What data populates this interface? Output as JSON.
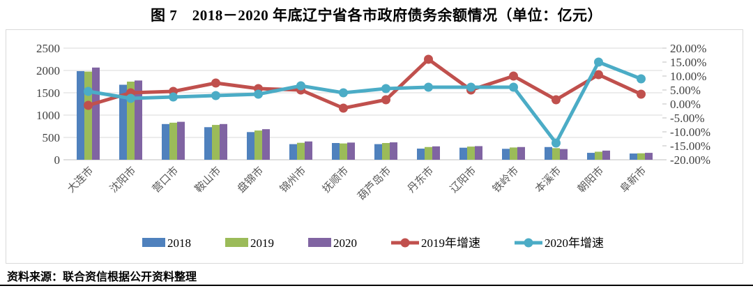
{
  "title": "图 7　2018－2020 年底辽宁省各市政府债务余额情况（单位：亿元）",
  "source_note": "资料来源：联合资信根据公开资料整理",
  "colors": {
    "bar_2018": "#4F81BD",
    "bar_2019": "#9BBB59",
    "bar_2020": "#8064A2",
    "line_2019_growth": "#C0504D",
    "line_2020_growth": "#4BACC6",
    "gridline": "#d9d9d9",
    "axis_line": "#bfbfbf",
    "axis_text": "#404040",
    "category_text": "#595959"
  },
  "chart_data": {
    "type": "bar",
    "subtype": "bar+line dual-axis",
    "categories": [
      "大连市",
      "沈阳市",
      "营口市",
      "鞍山市",
      "盘锦市",
      "锦州市",
      "抚顺市",
      "葫芦岛市",
      "丹东市",
      "辽阳市",
      "铁岭市",
      "本溪市",
      "朝阳市",
      "阜新市"
    ],
    "series": [
      {
        "name": "2018",
        "type": "bar",
        "axis": "left",
        "color": "#4F81BD",
        "values": [
          1985,
          1680,
          800,
          730,
          620,
          350,
          375,
          350,
          250,
          270,
          245,
          285,
          155,
          140
        ]
      },
      {
        "name": "2019",
        "type": "bar",
        "axis": "left",
        "color": "#9BBB59",
        "values": [
          1975,
          1750,
          830,
          780,
          655,
          380,
          365,
          375,
          285,
          295,
          275,
          260,
          180,
          145
        ]
      },
      {
        "name": "2020",
        "type": "bar",
        "axis": "left",
        "color": "#8064A2",
        "values": [
          2065,
          1775,
          850,
          800,
          685,
          410,
          385,
          390,
          300,
          305,
          285,
          240,
          205,
          155
        ]
      },
      {
        "name": "2019年增速",
        "type": "line",
        "axis": "right",
        "color": "#C0504D",
        "values": [
          -0.5,
          4,
          4.5,
          7.5,
          5.5,
          5,
          -1.5,
          1.5,
          16,
          5,
          10,
          1.5,
          10.5,
          3.5
        ]
      },
      {
        "name": "2020年增速",
        "type": "line",
        "axis": "right",
        "color": "#4BACC6",
        "values": [
          4.5,
          2,
          2.5,
          3,
          3.5,
          6.5,
          4,
          5.5,
          6,
          6,
          6,
          -14,
          15,
          9
        ]
      }
    ],
    "title": "图 7　2018－2020 年底辽宁省各市政府债务余额情况（单位：亿元）",
    "xlabel": "",
    "ylabel_left": "",
    "ylabel_right": "",
    "left_axis": {
      "min": 0,
      "max": 2500,
      "ticks": [
        "0",
        "500",
        "1000",
        "1500",
        "2000",
        "2500"
      ]
    },
    "right_axis": {
      "min": -20,
      "max": 20,
      "ticks": [
        "20.00%",
        "15.00%",
        "10.00%",
        "5.00%",
        "0.00%",
        "-5.00%",
        "-10.00%",
        "-15.00%",
        "-20.00%"
      ]
    },
    "grid": true,
    "legend_position": "bottom"
  }
}
